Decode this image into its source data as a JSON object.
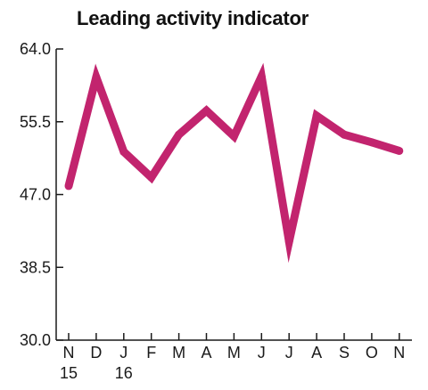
{
  "chart_data": {
    "type": "line",
    "title": "Leading activity indicator",
    "xlabel": "",
    "ylabel": "",
    "categories": [
      "N",
      "D",
      "J",
      "F",
      "M",
      "A",
      "M",
      "J",
      "J",
      "A",
      "S",
      "O",
      "N"
    ],
    "category_sublabels": [
      "15",
      "",
      "16",
      "",
      "",
      "",
      "",
      "",
      "",
      "",
      "",
      "",
      ""
    ],
    "values": [
      48.0,
      60.7,
      52.0,
      49.0,
      54.0,
      56.8,
      53.8,
      60.8,
      41.5,
      56.2,
      54.0,
      53.1,
      52.1
    ],
    "ylim": [
      30.0,
      64.0
    ],
    "yticks": [
      "30.0",
      "38.5",
      "47.0",
      "55.5",
      "64.0"
    ],
    "line_color": "#c2246e",
    "axis_color": "#1a1a1a",
    "grid": false,
    "legend": "none"
  }
}
